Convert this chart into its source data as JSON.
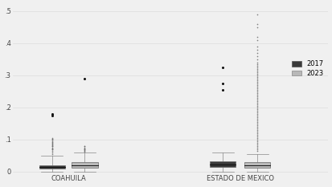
{
  "background_color": "#f0f0f0",
  "ylim": [
    -0.005,
    0.52
  ],
  "yticks": [
    0.0,
    0.1,
    0.2,
    0.3,
    0.4,
    0.5
  ],
  "ytick_labels": [
    "0",
    ".1",
    ".2",
    ".3",
    ".4",
    ".5"
  ],
  "groups": [
    "COAHUILA",
    "ESTADO DE MEXICO"
  ],
  "colors": {
    "2017": "#3a3a3a",
    "2023": "#b8b8b8"
  },
  "coahuila_2017": {
    "median": 0.013,
    "q1": 0.008,
    "q3": 0.02,
    "whisker_low": 0.0,
    "whisker_high": 0.048,
    "fliers": [
      0.055,
      0.06,
      0.065,
      0.068,
      0.07,
      0.072,
      0.075,
      0.078,
      0.08,
      0.082,
      0.084,
      0.086,
      0.09,
      0.092,
      0.095,
      0.098,
      0.1,
      0.102,
      0.105
    ],
    "anomalous": [
      0.175,
      0.18
    ]
  },
  "coahuila_2023": {
    "median": 0.018,
    "q1": 0.012,
    "q3": 0.028,
    "whisker_low": 0.0,
    "whisker_high": 0.058,
    "fliers": [
      0.062,
      0.064,
      0.066,
      0.068,
      0.07,
      0.072,
      0.075,
      0.078,
      0.08
    ],
    "anomalous": [
      0.29
    ]
  },
  "edomex_2017": {
    "median": 0.022,
    "q1": 0.015,
    "q3": 0.032,
    "whisker_low": 0.0,
    "whisker_high": 0.058,
    "fliers": [],
    "anomalous": [
      0.255,
      0.275,
      0.325
    ]
  },
  "edomex_2023": {
    "median": 0.02,
    "q1": 0.012,
    "q3": 0.03,
    "whisker_low": 0.0,
    "whisker_high": 0.055,
    "fliers": [
      0.065,
      0.07,
      0.075,
      0.08,
      0.085,
      0.09,
      0.095,
      0.1,
      0.105,
      0.11,
      0.115,
      0.12,
      0.125,
      0.13,
      0.135,
      0.14,
      0.145,
      0.15,
      0.155,
      0.16,
      0.165,
      0.17,
      0.175,
      0.18,
      0.185,
      0.19,
      0.195,
      0.2,
      0.205,
      0.21,
      0.215,
      0.22,
      0.225,
      0.23,
      0.235,
      0.24,
      0.245,
      0.25,
      0.255,
      0.26,
      0.265,
      0.27,
      0.275,
      0.28,
      0.285,
      0.29,
      0.295,
      0.3,
      0.305,
      0.31,
      0.315,
      0.32,
      0.325,
      0.33,
      0.335,
      0.34,
      0.35,
      0.36,
      0.37,
      0.38,
      0.39,
      0.41,
      0.42,
      0.45,
      0.46,
      0.49
    ],
    "anomalous": []
  }
}
